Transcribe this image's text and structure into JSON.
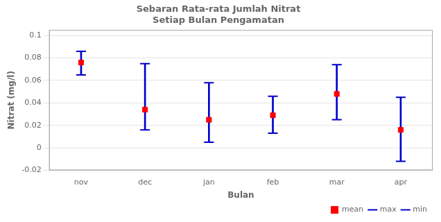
{
  "chart_data": {
    "type": "errorbar",
    "title": "Sebaran Rata-rata Jumlah Nitrat\nSetiap Bulan Pengamatan",
    "xlabel": "Bulan",
    "ylabel": "Nitrat (mg/l)",
    "categories": [
      "nov",
      "dec",
      "jan",
      "feb",
      "mar",
      "apr"
    ],
    "series": [
      {
        "name": "max",
        "color": "#0000CC",
        "marker": "line",
        "values": [
          0.086,
          0.075,
          0.058,
          0.046,
          0.074,
          0.045
        ]
      },
      {
        "name": "min",
        "color": "#0000CC",
        "marker": "line",
        "values": [
          0.065,
          0.016,
          0.005,
          0.013,
          0.025,
          -0.012
        ]
      },
      {
        "name": "mean",
        "color": "#FF0000",
        "marker": "square",
        "values": [
          0.076,
          0.034,
          0.025,
          0.029,
          0.048,
          0.016
        ]
      }
    ],
    "ylim": [
      -0.02,
      0.105
    ],
    "yticks": [
      -0.02,
      0,
      0.02,
      0.04,
      0.06,
      0.08,
      0.1
    ],
    "grid": true,
    "legend": "bottom"
  }
}
